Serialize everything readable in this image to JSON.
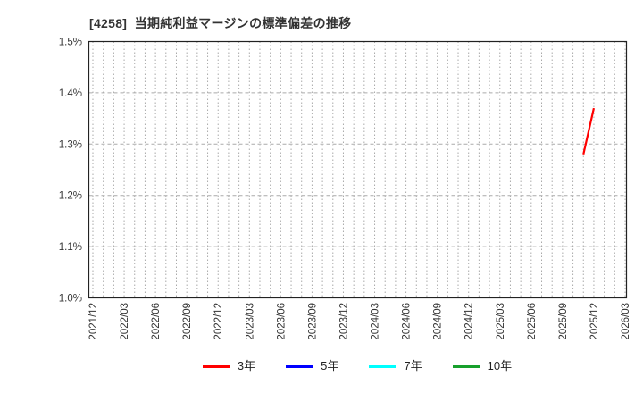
{
  "page": {
    "background": "#ffffff"
  },
  "header": {
    "title": "[4258]  当期純利益マージンの標準偏差の推移"
  },
  "chart_data": {
    "type": "line",
    "title": "[4258]  当期純利益マージンの標準偏差の推移",
    "xlabel": "",
    "ylabel": "",
    "y_unit": "%",
    "ylim": [
      1.0,
      1.5
    ],
    "y_tick_step": 0.1,
    "y_tick_labels": [
      "1.0%",
      "1.1%",
      "1.2%",
      "1.3%",
      "1.4%",
      "1.5%"
    ],
    "x_start_month": "2021/12",
    "x_end_month": "2026/03",
    "x_months_total": 51,
    "x_tick_labels": [
      "2021/12",
      "2022/03",
      "2022/06",
      "2022/09",
      "2022/12",
      "2023/03",
      "2023/06",
      "2023/09",
      "2023/12",
      "2024/03",
      "2024/06",
      "2024/09",
      "2024/12",
      "2025/03",
      "2025/06",
      "2025/09",
      "2025/12",
      "2026/03"
    ],
    "grid": {
      "vertical": "dotted-monthly",
      "horizontal": "dashed-per-0.1pct",
      "color": "#aaaaaa"
    },
    "axis_border_color": "#222222",
    "tick_label_color": "#333333",
    "legend_position": "bottom-center",
    "series": [
      {
        "name": "3年",
        "color": "#ff0000",
        "points": [
          {
            "x": "2025/11",
            "y": 1.28
          },
          {
            "x": "2025/12",
            "y": 1.37
          }
        ]
      },
      {
        "name": "5年",
        "color": "#0000ff",
        "points": []
      },
      {
        "name": "7年",
        "color": "#00ffff",
        "points": []
      },
      {
        "name": "10年",
        "color": "#17a02c",
        "points": []
      }
    ]
  }
}
